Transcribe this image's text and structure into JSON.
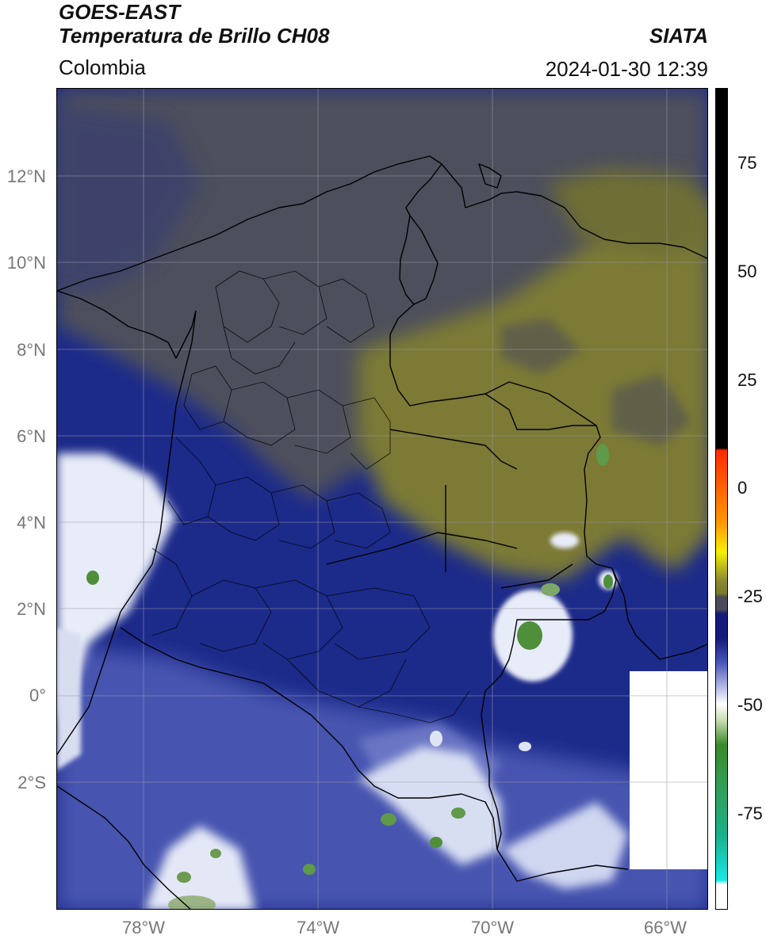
{
  "header": {
    "line1": "GOES-EAST",
    "line2": "Temperatura de Brillo CH08",
    "region": "Colombia",
    "agency": "SIATA",
    "timestamp": "2024-01-30 12:39"
  },
  "lat_labels": [
    "12°N",
    "10°N",
    "8°N",
    "6°N",
    "4°N",
    "2°N",
    "0°",
    "2°S"
  ],
  "lon_labels": [
    "78°W",
    "74°W",
    "70°W",
    "66°W"
  ],
  "colorbar": {
    "tick_labels": [
      "75",
      "50",
      "25",
      "0",
      "-25",
      "-50",
      "-75"
    ],
    "colors": {
      "hot": "#000000",
      "warm_red": "#ff1a00",
      "warm_orange": "#ff8c00",
      "warm_yellow": "#f5f000",
      "olive": "#7a7a2a",
      "grey": "#4a4a58",
      "navy": "#141a7a",
      "blue": "#4a58b8",
      "white": "#ffffff",
      "green": "#3a8a2a",
      "teal": "#18b08a",
      "cyan": "#18e8e8"
    }
  },
  "map_colors": {
    "background_navy": "#1c2a8a",
    "grey_cloud": "#4d4f5c",
    "olive_dry": "#7b7a34",
    "blue_moist": "#4654b0",
    "white_cold": "#e8ecf8",
    "green_coldest": "#4f8f3a",
    "border": "#000000",
    "gridline": "#9a9aa6"
  }
}
